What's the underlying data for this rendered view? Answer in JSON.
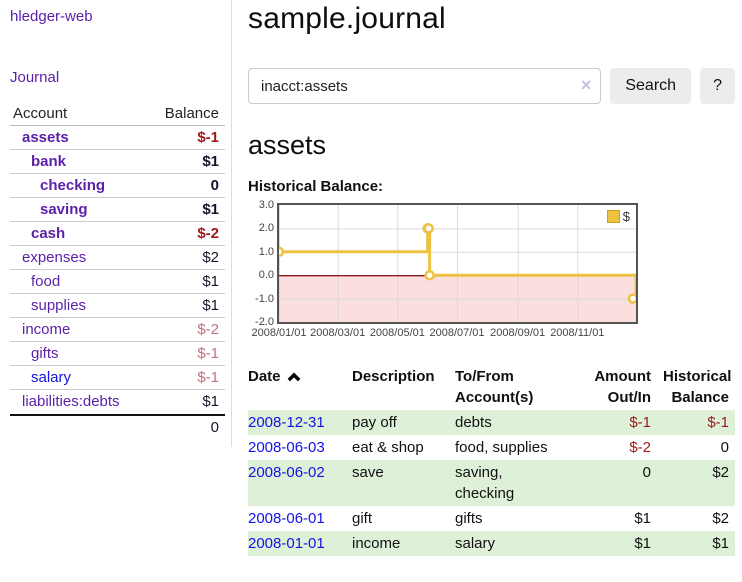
{
  "app": {
    "brand": "hledger-web",
    "nav_journal": "Journal"
  },
  "sidebar": {
    "headers": {
      "account": "Account",
      "balance": "Balance"
    },
    "accounts": [
      {
        "name": "assets",
        "depth": 1,
        "bold": true,
        "balance": "$-1",
        "neg": "strong"
      },
      {
        "name": "bank",
        "depth": 2,
        "bold": true,
        "balance": "$1",
        "neg": null
      },
      {
        "name": "checking",
        "depth": 3,
        "bold": true,
        "balance": "0",
        "neg": null
      },
      {
        "name": "saving",
        "depth": 3,
        "bold": true,
        "balance": "$1",
        "neg": null
      },
      {
        "name": "cash",
        "depth": 2,
        "bold": true,
        "balance": "$-2",
        "neg": "strong"
      },
      {
        "name": "expenses",
        "depth": 1,
        "bold": false,
        "balance": "$2",
        "neg": null
      },
      {
        "name": "food",
        "depth": 2,
        "bold": false,
        "balance": "$1",
        "neg": null
      },
      {
        "name": "supplies",
        "depth": 2,
        "bold": false,
        "balance": "$1",
        "neg": null
      },
      {
        "name": "income",
        "depth": 1,
        "bold": false,
        "balance": "$-2",
        "neg": "faded"
      },
      {
        "name": "gifts",
        "depth": 2,
        "bold": false,
        "balance": "$-1",
        "neg": "faded"
      },
      {
        "name": "salary",
        "depth": 2,
        "bold": false,
        "balance": "$-1",
        "neg": "faded",
        "blue": true
      },
      {
        "name": "liabilities:debts",
        "depth": 1,
        "bold": false,
        "balance": "$1",
        "neg": null
      }
    ],
    "total": "0"
  },
  "header": {
    "title": "sample.journal"
  },
  "search": {
    "value": "inacct:assets",
    "clear_icon": "×",
    "search_label": "Search",
    "help_label": "?"
  },
  "account_page": {
    "heading": "assets",
    "chart_label": "Historical Balance:"
  },
  "chart_data": {
    "type": "line",
    "step": true,
    "title": "Historical Balance",
    "legend": "$",
    "points": [
      {
        "date": "2008-01-01",
        "value": 1
      },
      {
        "date": "2008-06-01",
        "value": 2
      },
      {
        "date": "2008-06-02",
        "value": 2
      },
      {
        "date": "2008-06-03",
        "value": 0
      },
      {
        "date": "2008-12-31",
        "value": -1
      }
    ],
    "ylim": [
      -2,
      3
    ],
    "x_start": "2008-01-01",
    "x_span_days": 365,
    "yticks": [
      {
        "label": "3.0",
        "v": 3
      },
      {
        "label": "2.0",
        "v": 2
      },
      {
        "label": "1.0",
        "v": 1
      },
      {
        "label": "0.0",
        "v": 0
      },
      {
        "label": "-1.0",
        "v": -1
      },
      {
        "label": "-2.0",
        "v": -2
      }
    ],
    "xticks": [
      {
        "label": "2008/01/01",
        "date": "2008-01-01"
      },
      {
        "label": "2008/03/01",
        "date": "2008-03-01"
      },
      {
        "label": "2008/05/01",
        "date": "2008-05-01"
      },
      {
        "label": "2008/07/01",
        "date": "2008-07-01"
      },
      {
        "label": "2008/09/01",
        "date": "2008-09-01"
      },
      {
        "label": "2008/11/01",
        "date": "2008-11-01"
      }
    ],
    "grid": true,
    "legend_position": "top-right"
  },
  "register": {
    "columns": [
      {
        "lines": [
          "Date"
        ],
        "sort": "asc"
      },
      {
        "lines": [
          "Description"
        ]
      },
      {
        "lines": [
          "To/From",
          "Account(s)"
        ]
      },
      {
        "lines": [
          "Amount",
          "Out/In"
        ],
        "align": "right"
      },
      {
        "lines": [
          "Historical",
          "Balance"
        ],
        "align": "right"
      }
    ],
    "rows": [
      {
        "date": "2008-12-31",
        "description": "pay off",
        "accounts_lines": [
          "debts"
        ],
        "amount": "$-1",
        "amount_neg": true,
        "balance": "$-1",
        "balance_neg": true
      },
      {
        "date": "2008-06-03",
        "description": "eat & shop",
        "accounts_lines": [
          "food, supplies"
        ],
        "amount": "$-2",
        "amount_neg": true,
        "balance": "0",
        "balance_neg": false
      },
      {
        "date": "2008-06-02",
        "description": "save",
        "accounts_lines": [
          "saving,",
          "checking"
        ],
        "amount": "0",
        "amount_neg": false,
        "balance": "$2",
        "balance_neg": false
      },
      {
        "date": "2008-06-01",
        "description": "gift",
        "accounts_lines": [
          "gifts"
        ],
        "amount": "$1",
        "amount_neg": false,
        "balance": "$2",
        "balance_neg": false
      },
      {
        "date": "2008-01-01",
        "description": "income",
        "accounts_lines": [
          "salary"
        ],
        "amount": "$1",
        "amount_neg": false,
        "balance": "$1",
        "balance_neg": false
      }
    ]
  },
  "colors": {
    "accent_purple": "#5b1fa8",
    "link_blue": "#1414e0",
    "negative_strong": "#9e1a1a",
    "negative_faded": "#c1747f",
    "row_green": "#dff0d8",
    "chart_series": "#edc240",
    "chart_negative_fill": "#fbdede",
    "chart_zero_line": "#8b1a1a"
  }
}
